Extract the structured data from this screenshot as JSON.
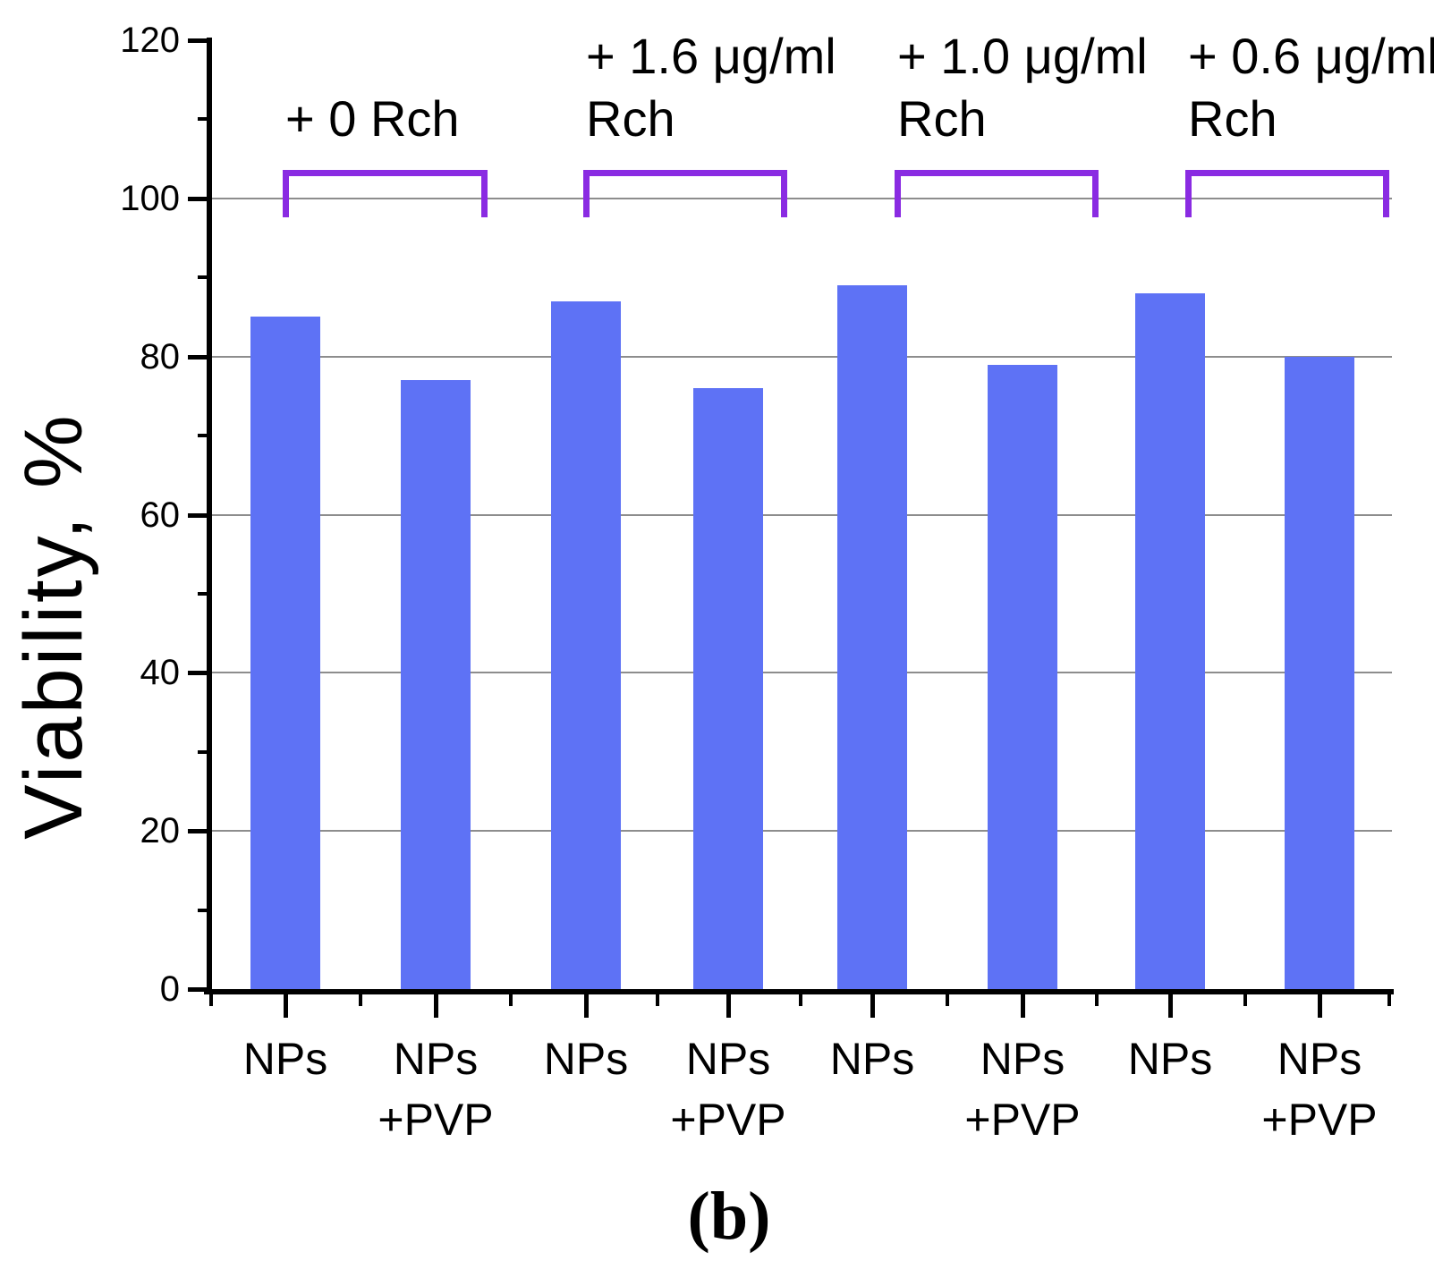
{
  "figure": {
    "caption": "(b)",
    "panel_label": "b"
  },
  "chart_data": {
    "type": "bar",
    "title": "",
    "xlabel": "",
    "ylabel": "Viability, %",
    "ylim": [
      0,
      120
    ],
    "yticks": [
      0,
      20,
      40,
      60,
      80,
      100,
      120
    ],
    "y_minor_ticks": [
      10,
      30,
      50,
      70,
      90,
      110
    ],
    "grid": "horizontal gray gridlines at major y ticks, no top/right border",
    "legend": "none",
    "bar_color": "#5e72f5",
    "bracket_color": "#8a2be2",
    "gridline_color": "#8d8d8d",
    "axis_color": "#000000",
    "bars": [
      {
        "category_lines": [
          "NPs"
        ],
        "value": 85
      },
      {
        "category_lines": [
          "NPs",
          "+PVP"
        ],
        "value": 77
      },
      {
        "category_lines": [
          "NPs"
        ],
        "value": 87
      },
      {
        "category_lines": [
          "NPs",
          "+PVP"
        ],
        "value": 76
      },
      {
        "category_lines": [
          "NPs"
        ],
        "value": 89
      },
      {
        "category_lines": [
          "NPs",
          "+PVP"
        ],
        "value": 79
      },
      {
        "category_lines": [
          "NPs"
        ],
        "value": 88
      },
      {
        "category_lines": [
          "NPs",
          "+PVP"
        ],
        "value": 80
      }
    ],
    "groups": [
      {
        "annotation_lines": [
          "+ 0 Rch"
        ],
        "bar_indices": [
          0,
          1
        ]
      },
      {
        "annotation_lines": [
          "+ 1.6 μg/ml",
          "Rch"
        ],
        "bar_indices": [
          2,
          3
        ]
      },
      {
        "annotation_lines": [
          "+ 1.0 μg/ml",
          "Rch"
        ],
        "bar_indices": [
          4,
          5
        ]
      },
      {
        "annotation_lines": [
          "+ 0.6 μg/ml",
          "Rch"
        ],
        "bar_indices": [
          6,
          7
        ]
      }
    ]
  }
}
